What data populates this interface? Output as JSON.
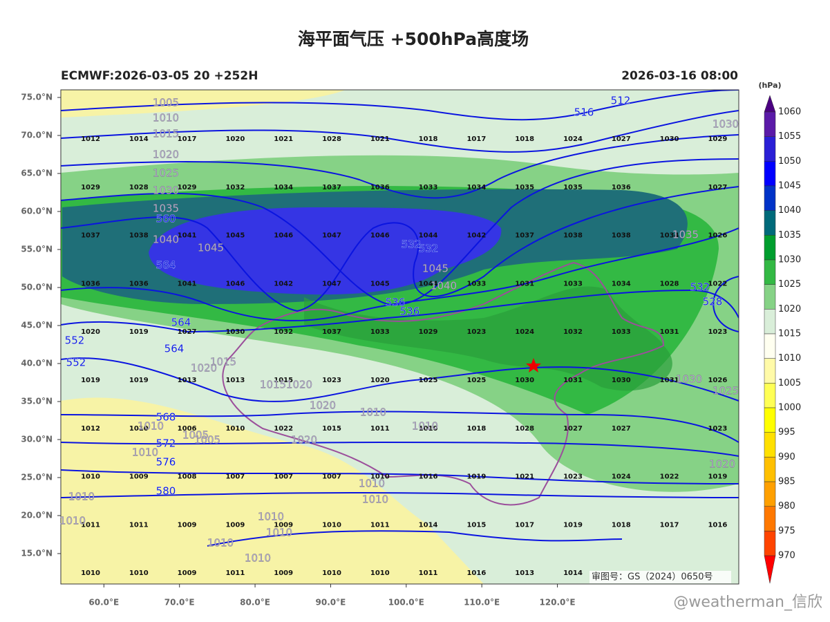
{
  "header": {
    "title": "海平面气压 +500hPa高度场",
    "left": "ECMWF:2026-03-05 20 +252H",
    "right": "2026-03-16 08:00"
  },
  "map": {
    "xlim": [
      54.3,
      144.0
    ],
    "ylim": [
      11.0,
      76.0
    ],
    "xticks": [
      {
        "value": 60,
        "label": "60.0°E"
      },
      {
        "value": 70,
        "label": "70.0°E"
      },
      {
        "value": 80,
        "label": "80.0°E"
      },
      {
        "value": 90,
        "label": "90.0°E"
      },
      {
        "value": 100,
        "label": "100.0°E"
      },
      {
        "value": 110,
        "label": "110.0°E"
      },
      {
        "value": 120,
        "label": "120.0°E"
      }
    ],
    "yticks": [
      {
        "value": 75,
        "label": "75.0°N"
      },
      {
        "value": 70,
        "label": "70.0°N"
      },
      {
        "value": 65,
        "label": "65.0°N"
      },
      {
        "value": 60,
        "label": "60.0°N"
      },
      {
        "value": 55,
        "label": "55.0°N"
      },
      {
        "value": 50,
        "label": "50.0°N"
      },
      {
        "value": 45,
        "label": "45.0°N"
      },
      {
        "value": 40,
        "label": "40.0°N"
      },
      {
        "value": 35,
        "label": "35.0°N"
      },
      {
        "value": 30,
        "label": "30.0°N"
      },
      {
        "value": 25,
        "label": "25.0°N"
      },
      {
        "value": 20,
        "label": "20.0°N"
      },
      {
        "value": 15,
        "label": "15.0°N"
      }
    ],
    "pressure_grid": [
      [
        1012,
        1014,
        1017,
        1020,
        1021,
        1028,
        1021,
        1018,
        1017,
        1018,
        1024,
        1027,
        1030,
        1029
      ],
      [
        1029,
        1028,
        1029,
        1032,
        1034,
        1037,
        1036,
        1033,
        1034,
        1035,
        1035,
        1036,
        null,
        1027
      ],
      [
        1037,
        1038,
        1041,
        1045,
        1046,
        1047,
        1046,
        1044,
        1042,
        1037,
        1038,
        1038,
        1034,
        1026
      ],
      [
        1036,
        1036,
        1041,
        1046,
        1042,
        1047,
        1045,
        1044,
        1033,
        1031,
        1033,
        1034,
        1028,
        1022
      ],
      [
        1020,
        1019,
        1027,
        1030,
        1032,
        1037,
        1033,
        1029,
        1023,
        1024,
        1032,
        1033,
        1031,
        1023
      ],
      [
        1019,
        1019,
        1013,
        1013,
        1015,
        1023,
        1020,
        1025,
        1025,
        1030,
        1031,
        1030,
        1031,
        1026
      ],
      [
        1012,
        1010,
        1006,
        1010,
        1022,
        1015,
        1011,
        1010,
        1018,
        1028,
        1027,
        1027,
        null,
        1023
      ],
      [
        1010,
        1009,
        1008,
        1007,
        1007,
        1007,
        1010,
        1016,
        1019,
        1021,
        1023,
        1024,
        1022,
        1019
      ],
      [
        1011,
        1011,
        1009,
        1009,
        1009,
        1010,
        1011,
        1014,
        1015,
        1017,
        1019,
        1018,
        1017,
        1016
      ],
      [
        1010,
        1010,
        1009,
        1011,
        1009,
        1010,
        1010,
        1011,
        1016,
        1013,
        1014,
        null,
        null,
        null
      ]
    ],
    "height_labels": [
      516,
      512,
      560,
      564,
      564,
      564,
      552,
      552,
      568,
      572,
      576,
      580,
      532,
      532,
      536,
      536,
      532,
      528
    ],
    "isobar_labels": [
      1045,
      1040,
      1035,
      1045,
      1040,
      1035,
      1030,
      1025,
      1020,
      1030,
      1020,
      1015,
      1015,
      1020,
      1020,
      1010,
      1010,
      1020,
      1005,
      1005,
      1010,
      1010,
      1010,
      1010,
      1010,
      1010,
      1010,
      1010,
      1010,
      1010,
      1005,
      1010,
      1015,
      1020,
      1025,
      1030
    ],
    "approval": "审图号：GS（2024）0650号",
    "watermark": "@weatherman_信欣"
  },
  "colorbar": {
    "unit": "(hPa)",
    "levels": [
      1060,
      1055,
      1050,
      1045,
      1040,
      1035,
      1030,
      1025,
      1020,
      1015,
      1010,
      1005,
      1000,
      995,
      990,
      985,
      980,
      975,
      970
    ],
    "colors": [
      "#4b0082",
      "#5b1aa8",
      "#2a1fd6",
      "#0000ff",
      "#0033c8",
      "#006a7a",
      "#009e2e",
      "#33b944",
      "#86d286",
      "#d9eed9",
      "#fffff0",
      "#fffaa8",
      "#ffff55",
      "#ffff00",
      "#ffe000",
      "#ffc000",
      "#ffa000",
      "#ff7800",
      "#ff4400",
      "#ff0000"
    ]
  }
}
